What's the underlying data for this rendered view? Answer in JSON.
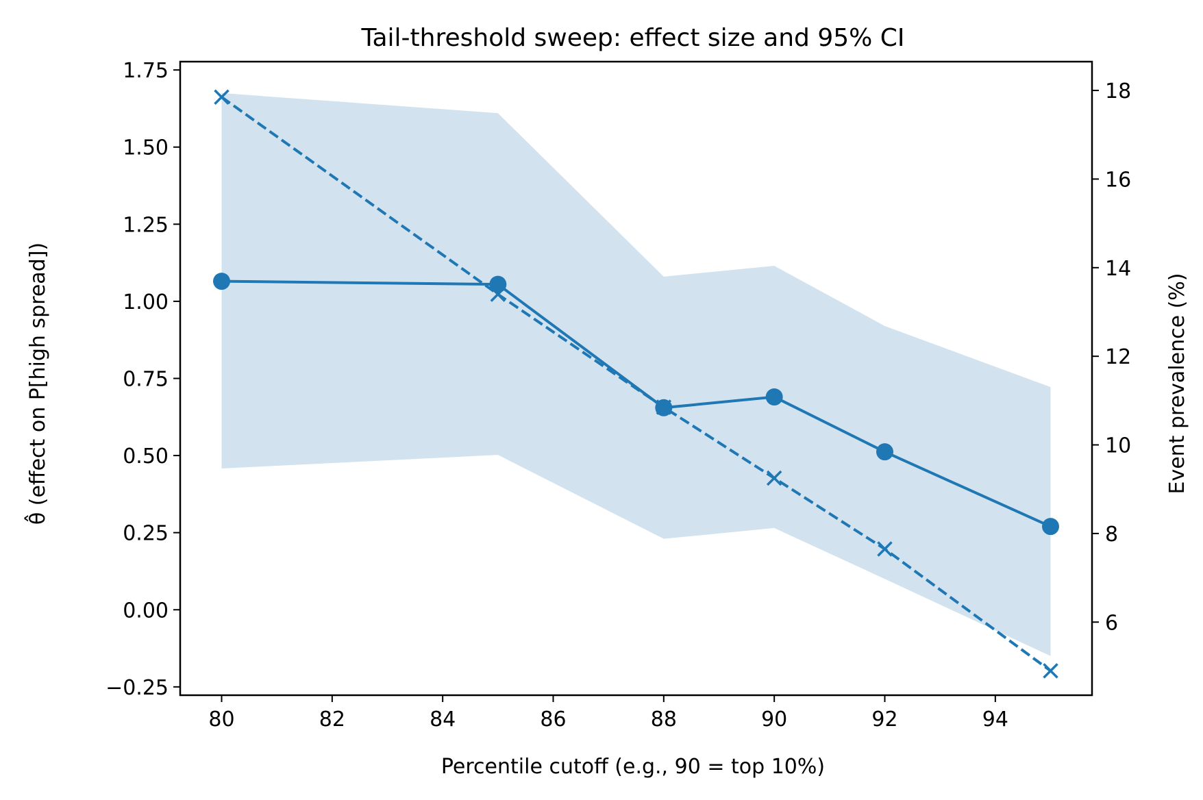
{
  "chart_data": {
    "type": "line",
    "title": "Tail-threshold sweep: effect size and 95% CI",
    "xlabel": "Percentile cutoff (e.g., 90 = top 10%)",
    "ylabel_left": "θ̂ (effect on P[high spread])",
    "ylabel_right": "Event prevalence (%)",
    "x": [
      80,
      85,
      88,
      90,
      92,
      95
    ],
    "xlim": [
      79.25,
      95.75
    ],
    "ylim_left": [
      -0.277,
      1.777
    ],
    "ylim_right": [
      4.35,
      18.65
    ],
    "x_ticks": [
      80,
      82,
      84,
      86,
      88,
      90,
      92,
      94
    ],
    "y_left_ticks": [
      -0.25,
      0.0,
      0.25,
      0.5,
      0.75,
      1.0,
      1.25,
      1.5,
      1.75
    ],
    "y_left_tick_labels": [
      "−0.25",
      "0.00",
      "0.25",
      "0.50",
      "0.75",
      "1.00",
      "1.25",
      "1.50",
      "1.75"
    ],
    "y_right_ticks": [
      6,
      8,
      10,
      12,
      14,
      16,
      18
    ],
    "grid": false,
    "colors": {
      "series": "#1f77b4",
      "ci_fill": "#d2e3ef",
      "axes": "#000000"
    },
    "series": [
      {
        "axis": "left",
        "style": "solid",
        "marker": "circle",
        "values": [
          1.065,
          1.055,
          0.655,
          0.69,
          0.512,
          0.27
        ]
      },
      {
        "axis": "left",
        "style": "band",
        "lower": [
          0.458,
          0.502,
          0.23,
          0.265,
          0.1,
          -0.15
        ],
        "upper": [
          1.675,
          1.61,
          1.08,
          1.115,
          0.92,
          0.722
        ]
      },
      {
        "axis": "right",
        "style": "dashed",
        "marker": "x",
        "values": [
          17.85,
          13.4,
          10.85,
          9.25,
          7.65,
          4.9
        ]
      }
    ]
  }
}
